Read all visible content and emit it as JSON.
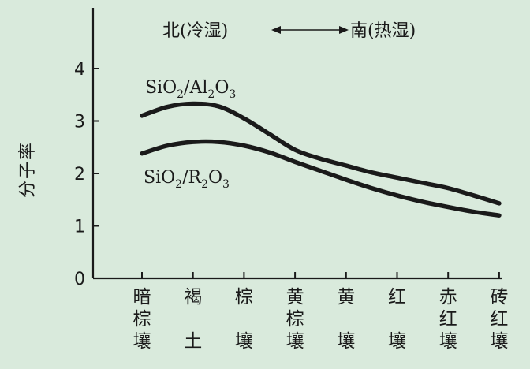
{
  "chart_data": {
    "type": "line",
    "title": "北(冷湿)←——→南(热湿)",
    "title_left": "北(冷湿)",
    "title_right": "南(热湿)",
    "ylabel": "分子率",
    "xlabel": "",
    "ylim": [
      0,
      4.5
    ],
    "yticks": [
      "0",
      "1",
      "2",
      "3",
      "4"
    ],
    "categories": [
      "暗棕壤",
      "褐土",
      "棕壤",
      "黄棕壤",
      "黄壤",
      "红壤",
      "赤红壤",
      "砖红壤"
    ],
    "category_lines": [
      [
        "暗",
        "棕",
        "壤"
      ],
      [
        "褐",
        "土"
      ],
      [
        "棕",
        "壤"
      ],
      [
        "黄",
        "棕",
        "壤"
      ],
      [
        "黄",
        "壤"
      ],
      [
        "红",
        "壤"
      ],
      [
        "赤",
        "红",
        "壤"
      ],
      [
        "砖",
        "红",
        "壤"
      ]
    ],
    "series": [
      {
        "name": "SiO2/Al2O3",
        "label_parts": [
          "SiO",
          "2",
          "/Al",
          "2",
          "O",
          "3"
        ],
        "color": "#1a1a1a",
        "points": [
          [
            -1,
            3.1
          ],
          [
            -0.5,
            3.27
          ],
          [
            0,
            3.33
          ],
          [
            0.5,
            3.28
          ],
          [
            1,
            3.05
          ],
          [
            1.5,
            2.75
          ],
          [
            2,
            2.45
          ],
          [
            2.5,
            2.28
          ],
          [
            3,
            2.15
          ],
          [
            3.5,
            2.02
          ],
          [
            4,
            1.92
          ],
          [
            4.5,
            1.82
          ],
          [
            5,
            1.72
          ],
          [
            5.5,
            1.58
          ],
          [
            6,
            1.43
          ]
        ]
      },
      {
        "name": "SiO2/R2O3",
        "label_parts": [
          "SiO",
          "2",
          "/R",
          "2",
          "O",
          "3"
        ],
        "color": "#1a1a1a",
        "points": [
          [
            -1,
            2.38
          ],
          [
            -0.5,
            2.53
          ],
          [
            0,
            2.6
          ],
          [
            0.5,
            2.6
          ],
          [
            1,
            2.53
          ],
          [
            1.5,
            2.4
          ],
          [
            2,
            2.22
          ],
          [
            2.5,
            2.05
          ],
          [
            3,
            1.88
          ],
          [
            3.5,
            1.72
          ],
          [
            4,
            1.58
          ],
          [
            4.5,
            1.46
          ],
          [
            5,
            1.36
          ],
          [
            5.5,
            1.27
          ],
          [
            6,
            1.2
          ]
        ]
      }
    ],
    "grid": false,
    "legend": "inline"
  }
}
